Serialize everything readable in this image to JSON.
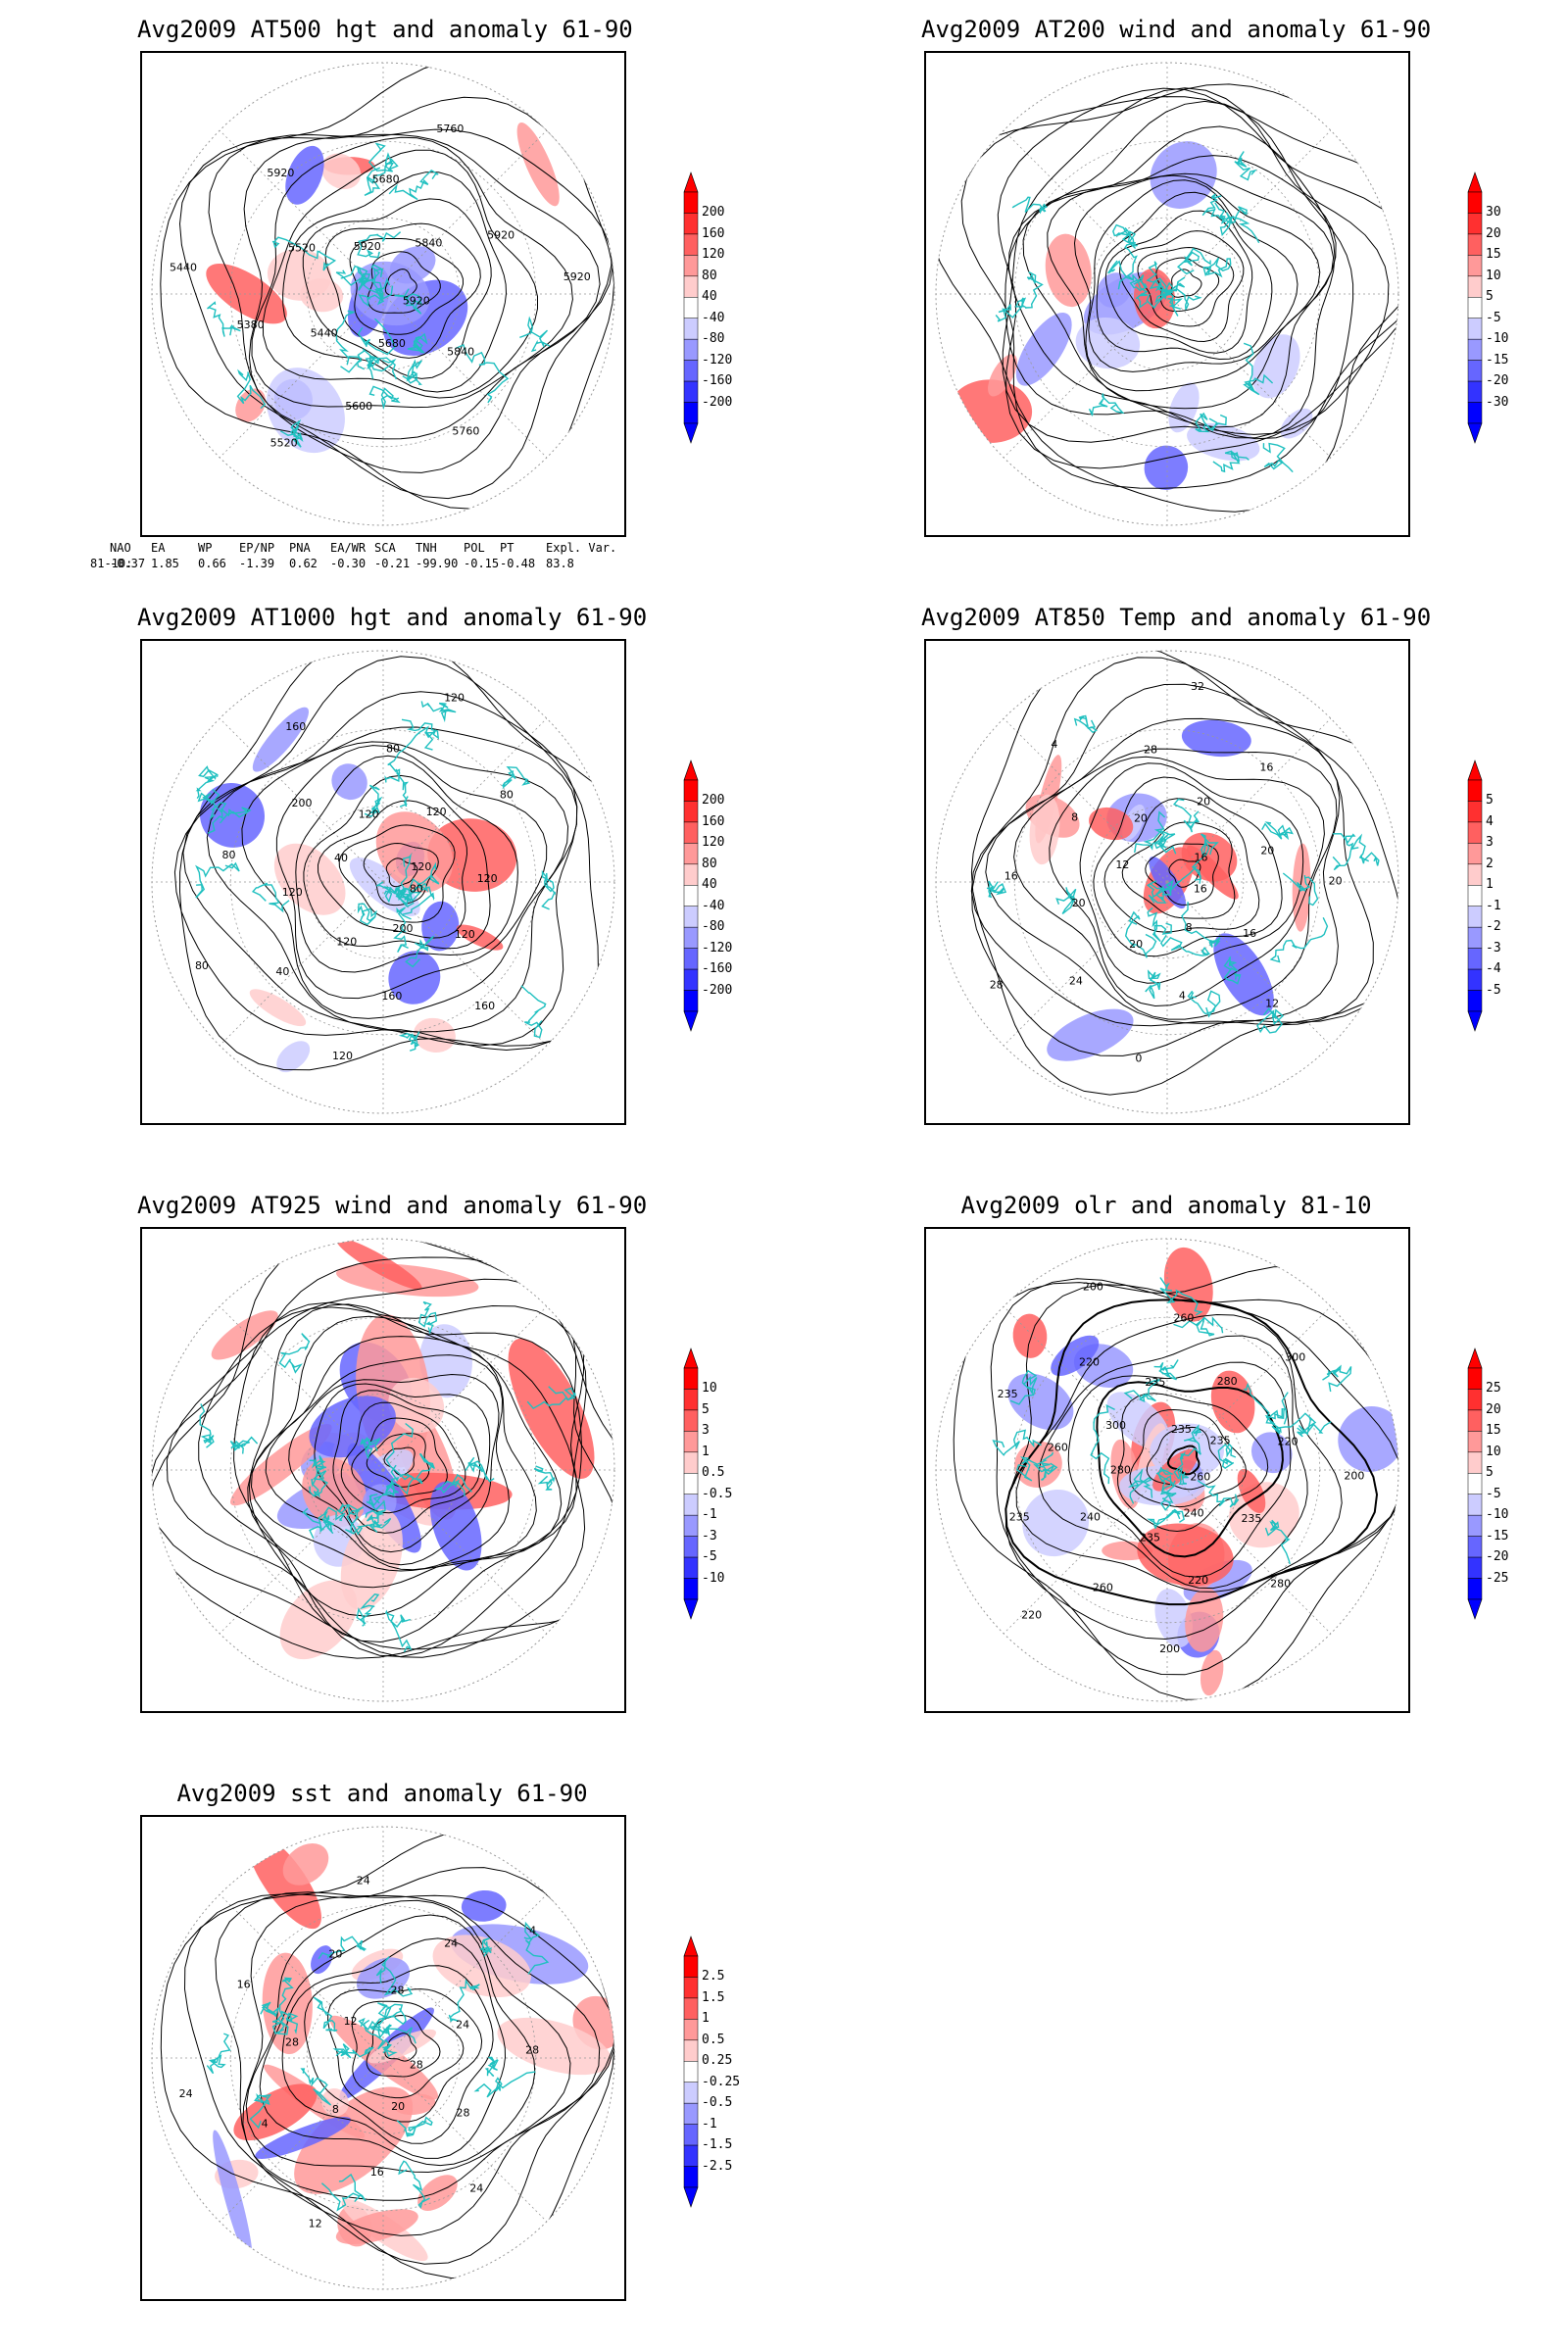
{
  "panels": [
    {
      "id": "p1",
      "title": "Avg2009 AT500 hgt and anomaly 61-90",
      "colorbar": [
        "200",
        "160",
        "120",
        "80",
        "40",
        "-40",
        "-80",
        "-120",
        "-160",
        "-200"
      ],
      "contour_labels": [
        "5920",
        "5840",
        "5760",
        "5680",
        "5600",
        "5520",
        "5440",
        "5380",
        "5440",
        "5520",
        "5920",
        "5920",
        "5680",
        "5760",
        "5840",
        "5920",
        "5920"
      ]
    },
    {
      "id": "p2",
      "title": "Avg2009 AT200 wind and anomaly 61-90",
      "colorbar": [
        "30",
        "20",
        "15",
        "10",
        "5",
        "-5",
        "-10",
        "-15",
        "-20",
        "-30"
      ],
      "contour_labels": []
    },
    {
      "id": "p3",
      "title": "Avg2009 AT1000 hgt and anomaly 61-90",
      "colorbar": [
        "200",
        "160",
        "120",
        "80",
        "40",
        "-40",
        "-80",
        "-120",
        "-160",
        "-200"
      ],
      "contour_labels": [
        "80",
        "120",
        "160",
        "200",
        "160",
        "120",
        "120",
        "40",
        "80",
        "120",
        "80",
        "40",
        "200",
        "160",
        "120",
        "80",
        "120",
        "120",
        "80",
        "120",
        "120"
      ]
    },
    {
      "id": "p4",
      "title": "Avg2009 AT850 Temp and anomaly 61-90",
      "colorbar": [
        "5",
        "4",
        "3",
        "2",
        "1",
        "-1",
        "-2",
        "-3",
        "-4",
        "-5"
      ],
      "contour_labels": [
        "16",
        "16",
        "12",
        "8",
        "4",
        "0",
        "20",
        "24",
        "28",
        "20",
        "16",
        "12",
        "8",
        "4",
        "20",
        "28",
        "32",
        "20",
        "16",
        "16",
        "20",
        "20"
      ]
    },
    {
      "id": "p5",
      "title": "Avg2009 AT925 wind and anomaly 61-90",
      "colorbar": [
        "10",
        "5",
        "3",
        "1",
        "0.5",
        "-0.5",
        "-1",
        "-3",
        "-5",
        "-10"
      ],
      "contour_labels": []
    },
    {
      "id": "p6",
      "title": "Avg2009 olr and anomaly 81-10",
      "colorbar": [
        "25",
        "20",
        "15",
        "10",
        "5",
        "-5",
        "-10",
        "-15",
        "-20",
        "-25"
      ],
      "contour_labels": [
        "260",
        "235",
        "280",
        "240",
        "220",
        "200",
        "235",
        "260",
        "220",
        "240",
        "235",
        "280",
        "260",
        "235",
        "300",
        "220",
        "200",
        "235",
        "260",
        "235",
        "280",
        "300",
        "235",
        "220",
        "200"
      ]
    },
    {
      "id": "p7",
      "title": "Avg2009 sst and anomaly 61-90",
      "colorbar": [
        "2.5",
        "1.5",
        "1",
        "0.5",
        "0.25",
        "-0.25",
        "-0.5",
        "-1",
        "-1.5",
        "-2.5"
      ],
      "contour_labels": [
        "28",
        "28",
        "24",
        "20",
        "16",
        "12",
        "8",
        "4",
        "24",
        "28",
        "16",
        "12",
        "20",
        "24",
        "28",
        "24",
        "4",
        "24",
        "28"
      ]
    }
  ],
  "indices": {
    "headers": [
      "NAO",
      "EA",
      "WP",
      "EP/NP",
      "PNA",
      "EA/WR",
      "SCA",
      "TNH",
      "POL",
      "PT",
      "Expl. Var."
    ],
    "row_label": "81-10:",
    "values": [
      "-0.37",
      "1.85",
      "0.66",
      "-1.39",
      "0.62",
      "-0.30",
      "-0.21",
      "-99.90",
      "-0.15",
      "-0.48",
      "83.8"
    ]
  },
  "colors": {
    "red_scale": [
      "#ff0000",
      "#ff3030",
      "#ff6060",
      "#ff9999",
      "#ffcccc"
    ],
    "blue_scale": [
      "#ccccff",
      "#9999ff",
      "#6666ff",
      "#3333ff",
      "#0000ff"
    ],
    "coast": "#20c0c0",
    "contour": "#000000",
    "grid": "#999999"
  }
}
